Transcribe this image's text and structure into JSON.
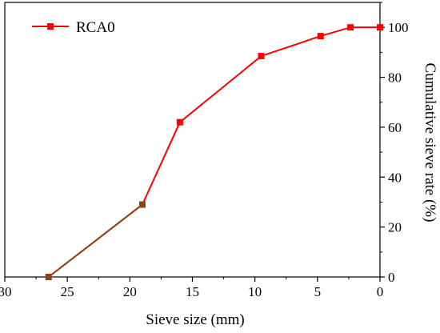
{
  "chart_data": {
    "type": "line",
    "xlabel": "Sieve size (mm)",
    "ylabel": "Cumulative sieve rate (%)",
    "xlim": [
      30,
      0
    ],
    "ylim": [
      0,
      110
    ],
    "x_reversed": true,
    "y_axis_side": "right",
    "grid": false,
    "legend_position": "top-left",
    "x_ticks": [
      30,
      25,
      20,
      15,
      10,
      5,
      0
    ],
    "y_ticks": [
      0,
      20,
      40,
      60,
      80,
      100
    ],
    "series": [
      {
        "name": "RCA0",
        "color": "#ff0000",
        "marker": "square",
        "x": [
          26.5,
          19,
          16,
          9.5,
          4.75,
          2.36,
          0
        ],
        "y": [
          0,
          29,
          62,
          88.5,
          96.5,
          100,
          100
        ]
      }
    ],
    "overlay_segment": {
      "color": "#8b4513",
      "from_index": 0,
      "to_index": 1
    }
  }
}
